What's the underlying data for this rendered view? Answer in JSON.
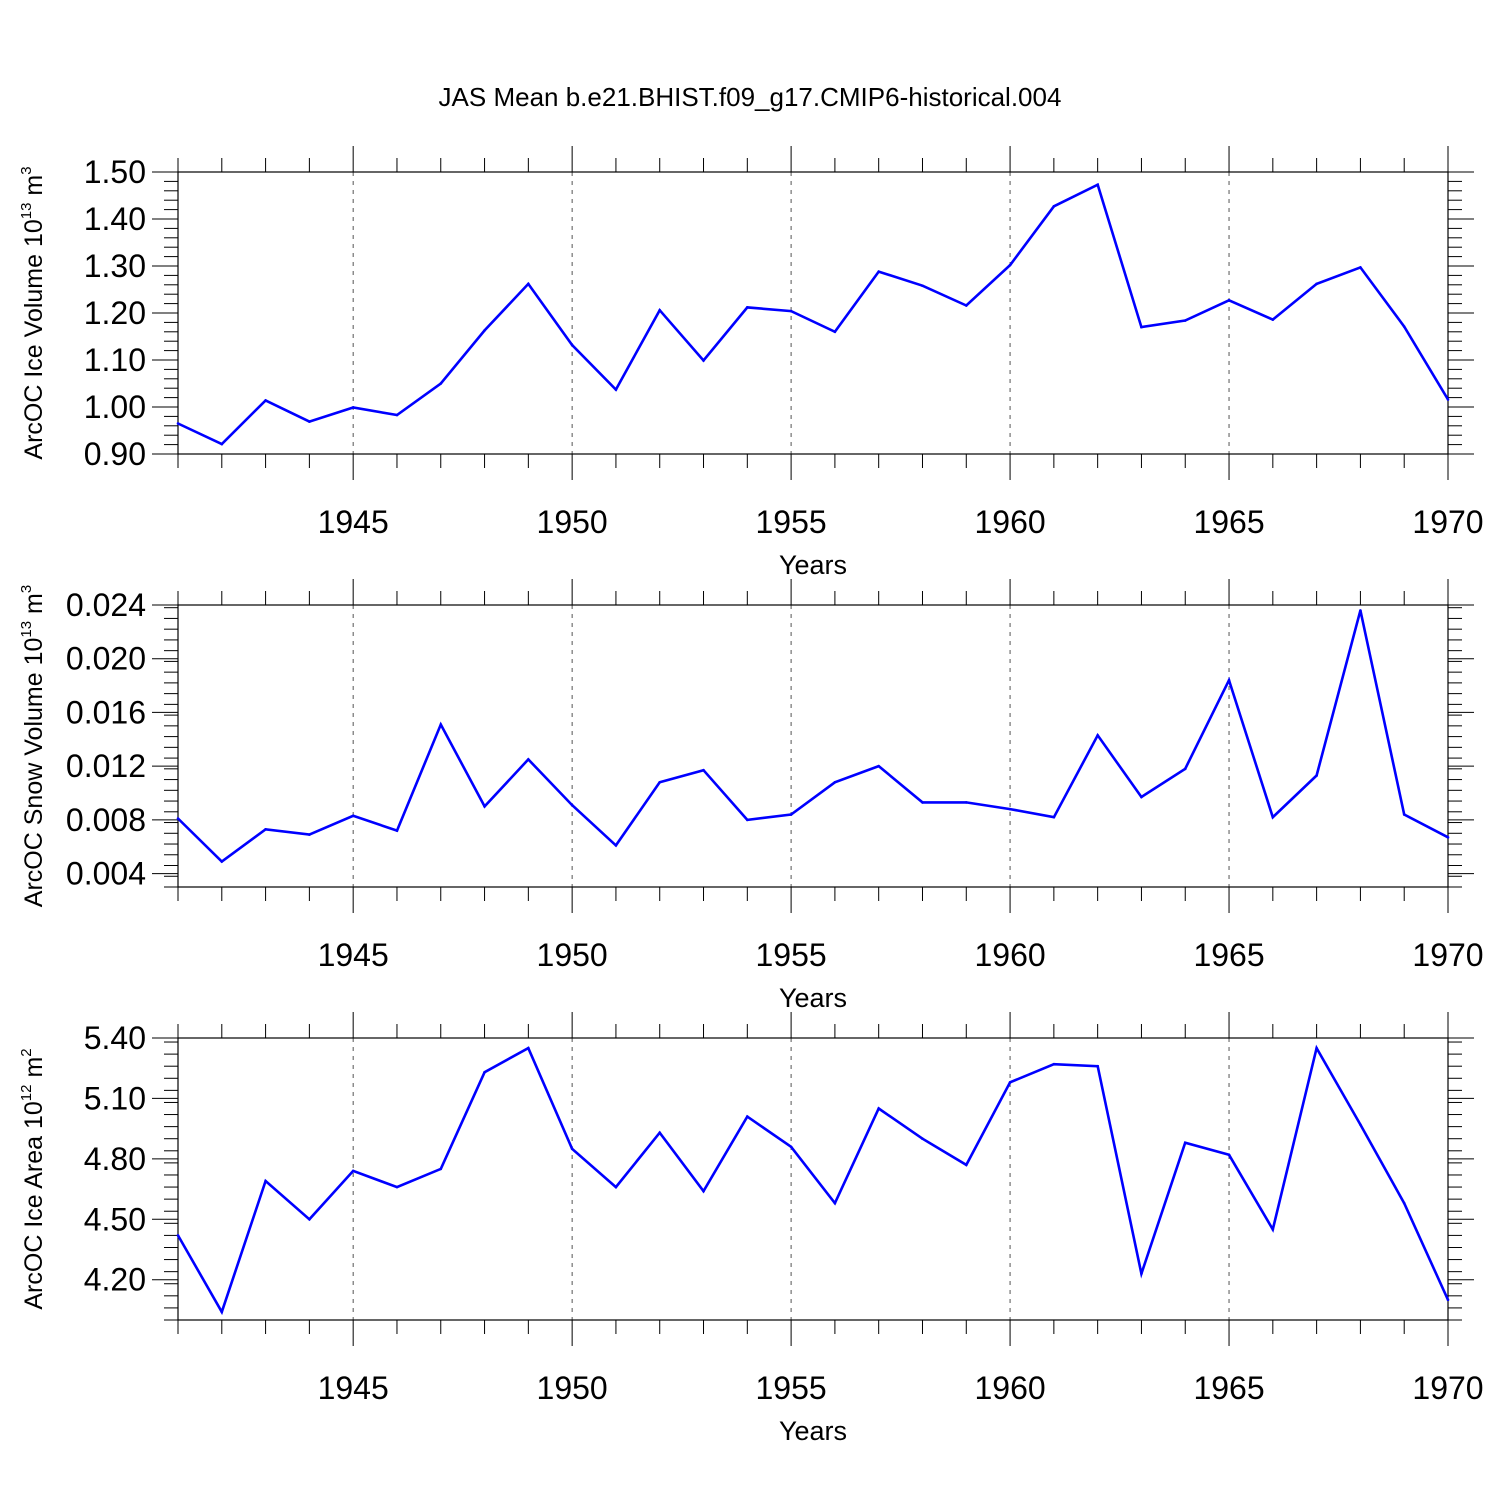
{
  "figure": {
    "title": "JAS Mean b.e21.BHIST.f09_g17.CMIP6-historical.004",
    "line_color": "#0000ff"
  },
  "chart_data": [
    {
      "type": "line",
      "ylabel": {
        "text": "ArcOC Ice Volume 10",
        "exp": "13",
        "unit_suffix": " m",
        "unit_exp": "3"
      },
      "xlabel": "Years",
      "xlim": [
        1941,
        1970
      ],
      "ylim": [
        0.9,
        1.5
      ],
      "yticks": [
        0.9,
        1.0,
        1.1,
        1.2,
        1.3,
        1.4,
        1.5
      ],
      "ytick_labels": [
        "0.90",
        "1.00",
        "1.10",
        "1.20",
        "1.30",
        "1.40",
        "1.50"
      ],
      "xticks": [
        1945,
        1950,
        1955,
        1960,
        1965,
        1970
      ],
      "xtick_labels": [
        "1945",
        "1950",
        "1955",
        "1960",
        "1965",
        "1970"
      ],
      "grid": "vertical dashed at major x ticks",
      "x": [
        1941,
        1942,
        1943,
        1944,
        1945,
        1946,
        1947,
        1948,
        1949,
        1950,
        1951,
        1952,
        1953,
        1954,
        1955,
        1956,
        1957,
        1958,
        1959,
        1960,
        1961,
        1962,
        1963,
        1964,
        1965,
        1966,
        1967,
        1968,
        1969,
        1970
      ],
      "values": [
        0.965,
        0.921,
        1.014,
        0.969,
        0.999,
        0.983,
        1.05,
        1.163,
        1.262,
        1.132,
        1.037,
        1.206,
        1.099,
        1.212,
        1.204,
        1.16,
        1.288,
        1.258,
        1.216,
        1.302,
        1.427,
        1.473,
        1.17,
        1.184,
        1.227,
        1.186,
        1.262,
        1.297,
        1.171,
        1.016
      ]
    },
    {
      "type": "line",
      "ylabel": {
        "text": "ArcOC Snow Volume 10",
        "exp": "13",
        "unit_suffix": " m",
        "unit_exp": "3"
      },
      "xlabel": "Years",
      "xlim": [
        1941,
        1970
      ],
      "ylim": [
        0.003,
        0.024
      ],
      "yticks": [
        0.004,
        0.008,
        0.012,
        0.016,
        0.02,
        0.024
      ],
      "ytick_labels": [
        "0.004",
        "0.008",
        "0.012",
        "0.016",
        "0.020",
        "0.024"
      ],
      "xticks": [
        1945,
        1950,
        1955,
        1960,
        1965,
        1970
      ],
      "xtick_labels": [
        "1945",
        "1950",
        "1955",
        "1960",
        "1965",
        "1970"
      ],
      "grid": "vertical dashed at major x ticks",
      "x": [
        1941,
        1942,
        1943,
        1944,
        1945,
        1946,
        1947,
        1948,
        1949,
        1950,
        1951,
        1952,
        1953,
        1954,
        1955,
        1956,
        1957,
        1958,
        1959,
        1960,
        1961,
        1962,
        1963,
        1964,
        1965,
        1966,
        1967,
        1968,
        1969,
        1970
      ],
      "values": [
        0.0081,
        0.0049,
        0.0073,
        0.0069,
        0.0083,
        0.0072,
        0.0151,
        0.009,
        0.0125,
        0.0091,
        0.0061,
        0.0108,
        0.0117,
        0.008,
        0.0084,
        0.0108,
        0.012,
        0.0093,
        0.0093,
        0.0088,
        0.0082,
        0.0143,
        0.0097,
        0.0118,
        0.0184,
        0.0082,
        0.0113,
        0.0236,
        0.0084,
        0.0067
      ]
    },
    {
      "type": "line",
      "ylabel": {
        "text": "ArcOC Ice Area 10",
        "exp": "12",
        "unit_suffix": " m",
        "unit_exp": "2"
      },
      "xlabel": "Years",
      "xlim": [
        1941,
        1970
      ],
      "ylim": [
        4.0,
        5.4
      ],
      "yticks": [
        4.2,
        4.5,
        4.8,
        5.1,
        5.4
      ],
      "ytick_labels": [
        "4.20",
        "4.50",
        "4.80",
        "5.10",
        "5.40"
      ],
      "xticks": [
        1945,
        1950,
        1955,
        1960,
        1965,
        1970
      ],
      "xtick_labels": [
        "1945",
        "1950",
        "1955",
        "1960",
        "1965",
        "1970"
      ],
      "grid": "vertical dashed at major x ticks",
      "x": [
        1941,
        1942,
        1943,
        1944,
        1945,
        1946,
        1947,
        1948,
        1949,
        1950,
        1951,
        1952,
        1953,
        1954,
        1955,
        1956,
        1957,
        1958,
        1959,
        1960,
        1961,
        1962,
        1963,
        1964,
        1965,
        1966,
        1967,
        1968,
        1969,
        1970
      ],
      "values": [
        4.42,
        4.04,
        4.69,
        4.5,
        4.74,
        4.66,
        4.75,
        5.23,
        5.35,
        4.85,
        4.66,
        4.93,
        4.64,
        5.01,
        4.86,
        4.58,
        5.05,
        4.9,
        4.77,
        5.18,
        5.27,
        5.26,
        4.23,
        4.88,
        4.82,
        4.45,
        5.35,
        4.97,
        4.58,
        4.1
      ]
    }
  ]
}
